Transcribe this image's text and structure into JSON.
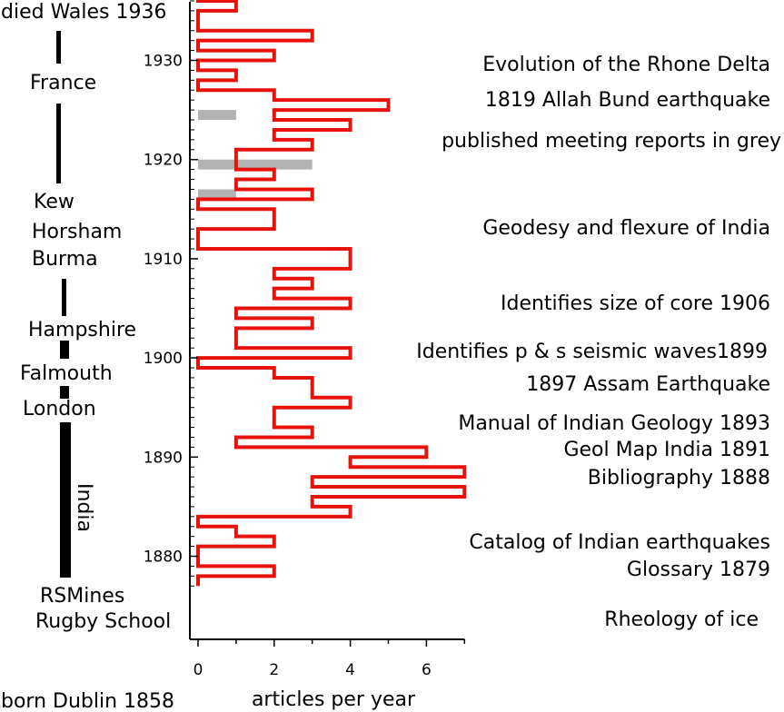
{
  "chart_data": {
    "type": "step histogram",
    "xlabel": "articles per year",
    "xlim": [
      0,
      7
    ],
    "xticks": [
      0,
      2,
      4,
      6
    ],
    "ylim": [
      1877,
      1937
    ],
    "yticks": [
      1880,
      1890,
      1900,
      1910,
      1920,
      1930
    ],
    "series": [
      {
        "color": "#e8120c",
        "years": [
          1877,
          1878,
          1879,
          1880,
          1881,
          1882,
          1883,
          1884,
          1885,
          1886,
          1887,
          1888,
          1889,
          1890,
          1891,
          1892,
          1893,
          1894,
          1895,
          1896,
          1897,
          1898,
          1899,
          1900,
          1901,
          1902,
          1903,
          1904,
          1905,
          1906,
          1907,
          1908,
          1909,
          1910,
          1911,
          1912,
          1913,
          1914,
          1915,
          1916,
          1917,
          1918,
          1919,
          1920,
          1921,
          1922,
          1923,
          1924,
          1925,
          1926,
          1927,
          1928,
          1929,
          1930,
          1931,
          1932,
          1933,
          1934,
          1935,
          1936
        ],
        "values": [
          0,
          2,
          0,
          0,
          2,
          1,
          0,
          4,
          3,
          7,
          3,
          7,
          4,
          6,
          1,
          3,
          2,
          2,
          4,
          3,
          3,
          2,
          0,
          4,
          1,
          1,
          3,
          1,
          4,
          2,
          3,
          2,
          4,
          4,
          0,
          0,
          2,
          2,
          0,
          3,
          1,
          2,
          1,
          1,
          3,
          2,
          4,
          2,
          5,
          2,
          0,
          1,
          0,
          2,
          0,
          3,
          0,
          0,
          1,
          0
        ]
      },
      {
        "color": "#b3b3b3",
        "years": [
          1916,
          1919,
          1924
        ],
        "values": [
          1,
          3,
          1
        ]
      }
    ],
    "life_events": [
      "died Wales 1936",
      "France",
      "Kew",
      "Horsham",
      "Burma",
      "Hampshire",
      "Falmouth",
      "London",
      "India",
      "RSMines",
      "Rugby School",
      "born Dublin 1858"
    ],
    "annotations": [
      "Evolution of the Rhone Delta",
      "1819 Allah Bund earthquake",
      "published meeting reports in grey",
      "Geodesy and flexure of India",
      "Identifies size of core 1906",
      "Identifies p & s seismic waves1899",
      "1897 Assam Earthquake",
      "Manual of Indian Geology 1893",
      "Geol Map India 1891",
      "Bibliography 1888",
      "Catalog of Indian earthquakes",
      "Glossary 1879",
      "Rheology of ice"
    ]
  }
}
